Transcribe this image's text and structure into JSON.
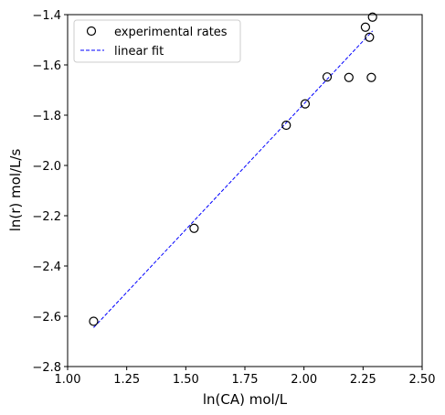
{
  "chart_data": {
    "type": "scatter",
    "title": "",
    "xlabel": "ln(CA) mol/L",
    "ylabel": "ln(r) mol/L/s",
    "xlim": [
      1.0,
      2.5
    ],
    "ylim": [
      -2.8,
      -1.4
    ],
    "xticks": [
      1.0,
      1.25,
      1.5,
      1.75,
      2.0,
      2.25,
      2.5
    ],
    "xtick_labels": [
      "1.00",
      "1.25",
      "1.50",
      "1.75",
      "2.00",
      "2.25",
      "2.50"
    ],
    "yticks": [
      -2.8,
      -2.6,
      -2.4,
      -2.2,
      -2.0,
      -1.8,
      -1.6,
      -1.4
    ],
    "ytick_labels": [
      "−2.8",
      "−2.6",
      "−2.4",
      "−2.2",
      "−2.0",
      "−1.8",
      "−1.6",
      "−1.4"
    ],
    "grid": false,
    "legend_position": "top-left",
    "series": [
      {
        "name": "experimental rates",
        "kind": "scatter",
        "marker": "open-circle",
        "color": "#000000",
        "x": [
          1.11,
          1.535,
          1.925,
          2.005,
          2.098,
          2.19,
          2.26,
          2.277,
          2.285,
          2.29
        ],
        "y": [
          -2.62,
          -2.25,
          -1.84,
          -1.755,
          -1.648,
          -1.65,
          -1.45,
          -1.49,
          -1.65,
          -1.41
        ]
      },
      {
        "name": "linear fit",
        "kind": "line",
        "style": "dashed",
        "color": "#0000ff",
        "x": [
          1.11,
          2.29
        ],
        "y": [
          -2.645,
          -1.465
        ]
      }
    ]
  }
}
